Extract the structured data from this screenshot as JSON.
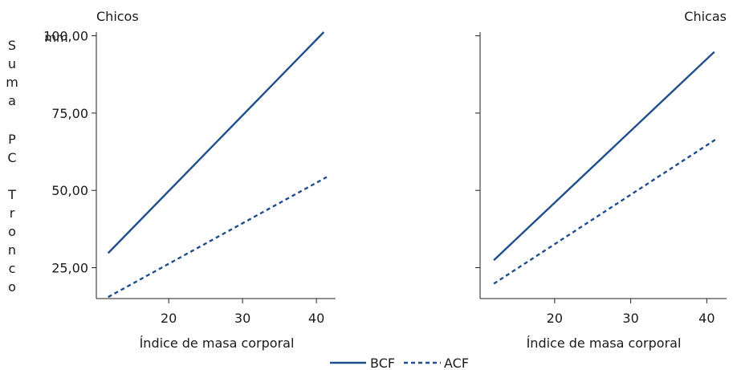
{
  "figure": {
    "ylabel_letters": [
      "S",
      "u",
      "m",
      "a",
      "P",
      "C",
      "T",
      "r",
      "o",
      "n",
      "c",
      "o"
    ],
    "y_unit": "mm",
    "legend": [
      {
        "label": "BCF",
        "style": "solid"
      },
      {
        "label": "ACF",
        "style": "dashed"
      }
    ],
    "line_color": "#1f4e8c"
  },
  "chart_data": [
    {
      "type": "line",
      "title": "Chicos",
      "xlabel": "Índice de masa corporal",
      "ylabel": "Suma PC Tronco",
      "xlim": [
        10.2,
        42.6
      ],
      "ylim": [
        15.0,
        101.2
      ],
      "x_ticks": [
        20,
        30,
        40
      ],
      "y_ticks": [
        25,
        50,
        75,
        100
      ],
      "y_tick_labels": [
        "25,00",
        "50,00",
        "75,00",
        "100,00"
      ],
      "series": [
        {
          "name": "BCF",
          "x": [
            11.8,
            41.0
          ],
          "y": [
            29.7,
            101.2
          ]
        },
        {
          "name": "ACF",
          "x": [
            11.8,
            41.4
          ],
          "y": [
            15.5,
            54.3
          ]
        }
      ]
    },
    {
      "type": "line",
      "title": "Chicas",
      "xlabel": "Índice de masa corporal",
      "ylabel": "",
      "xlim": [
        10.2,
        42.6
      ],
      "ylim": [
        15.0,
        101.2
      ],
      "x_ticks": [
        20,
        30,
        40
      ],
      "y_ticks": [
        25,
        50,
        75,
        100
      ],
      "y_tick_labels": [],
      "series": [
        {
          "name": "BCF",
          "x": [
            12.0,
            41.0
          ],
          "y": [
            27.4,
            94.8
          ]
        },
        {
          "name": "ACF",
          "x": [
            12.0,
            41.2
          ],
          "y": [
            19.8,
            66.5
          ]
        }
      ]
    }
  ]
}
